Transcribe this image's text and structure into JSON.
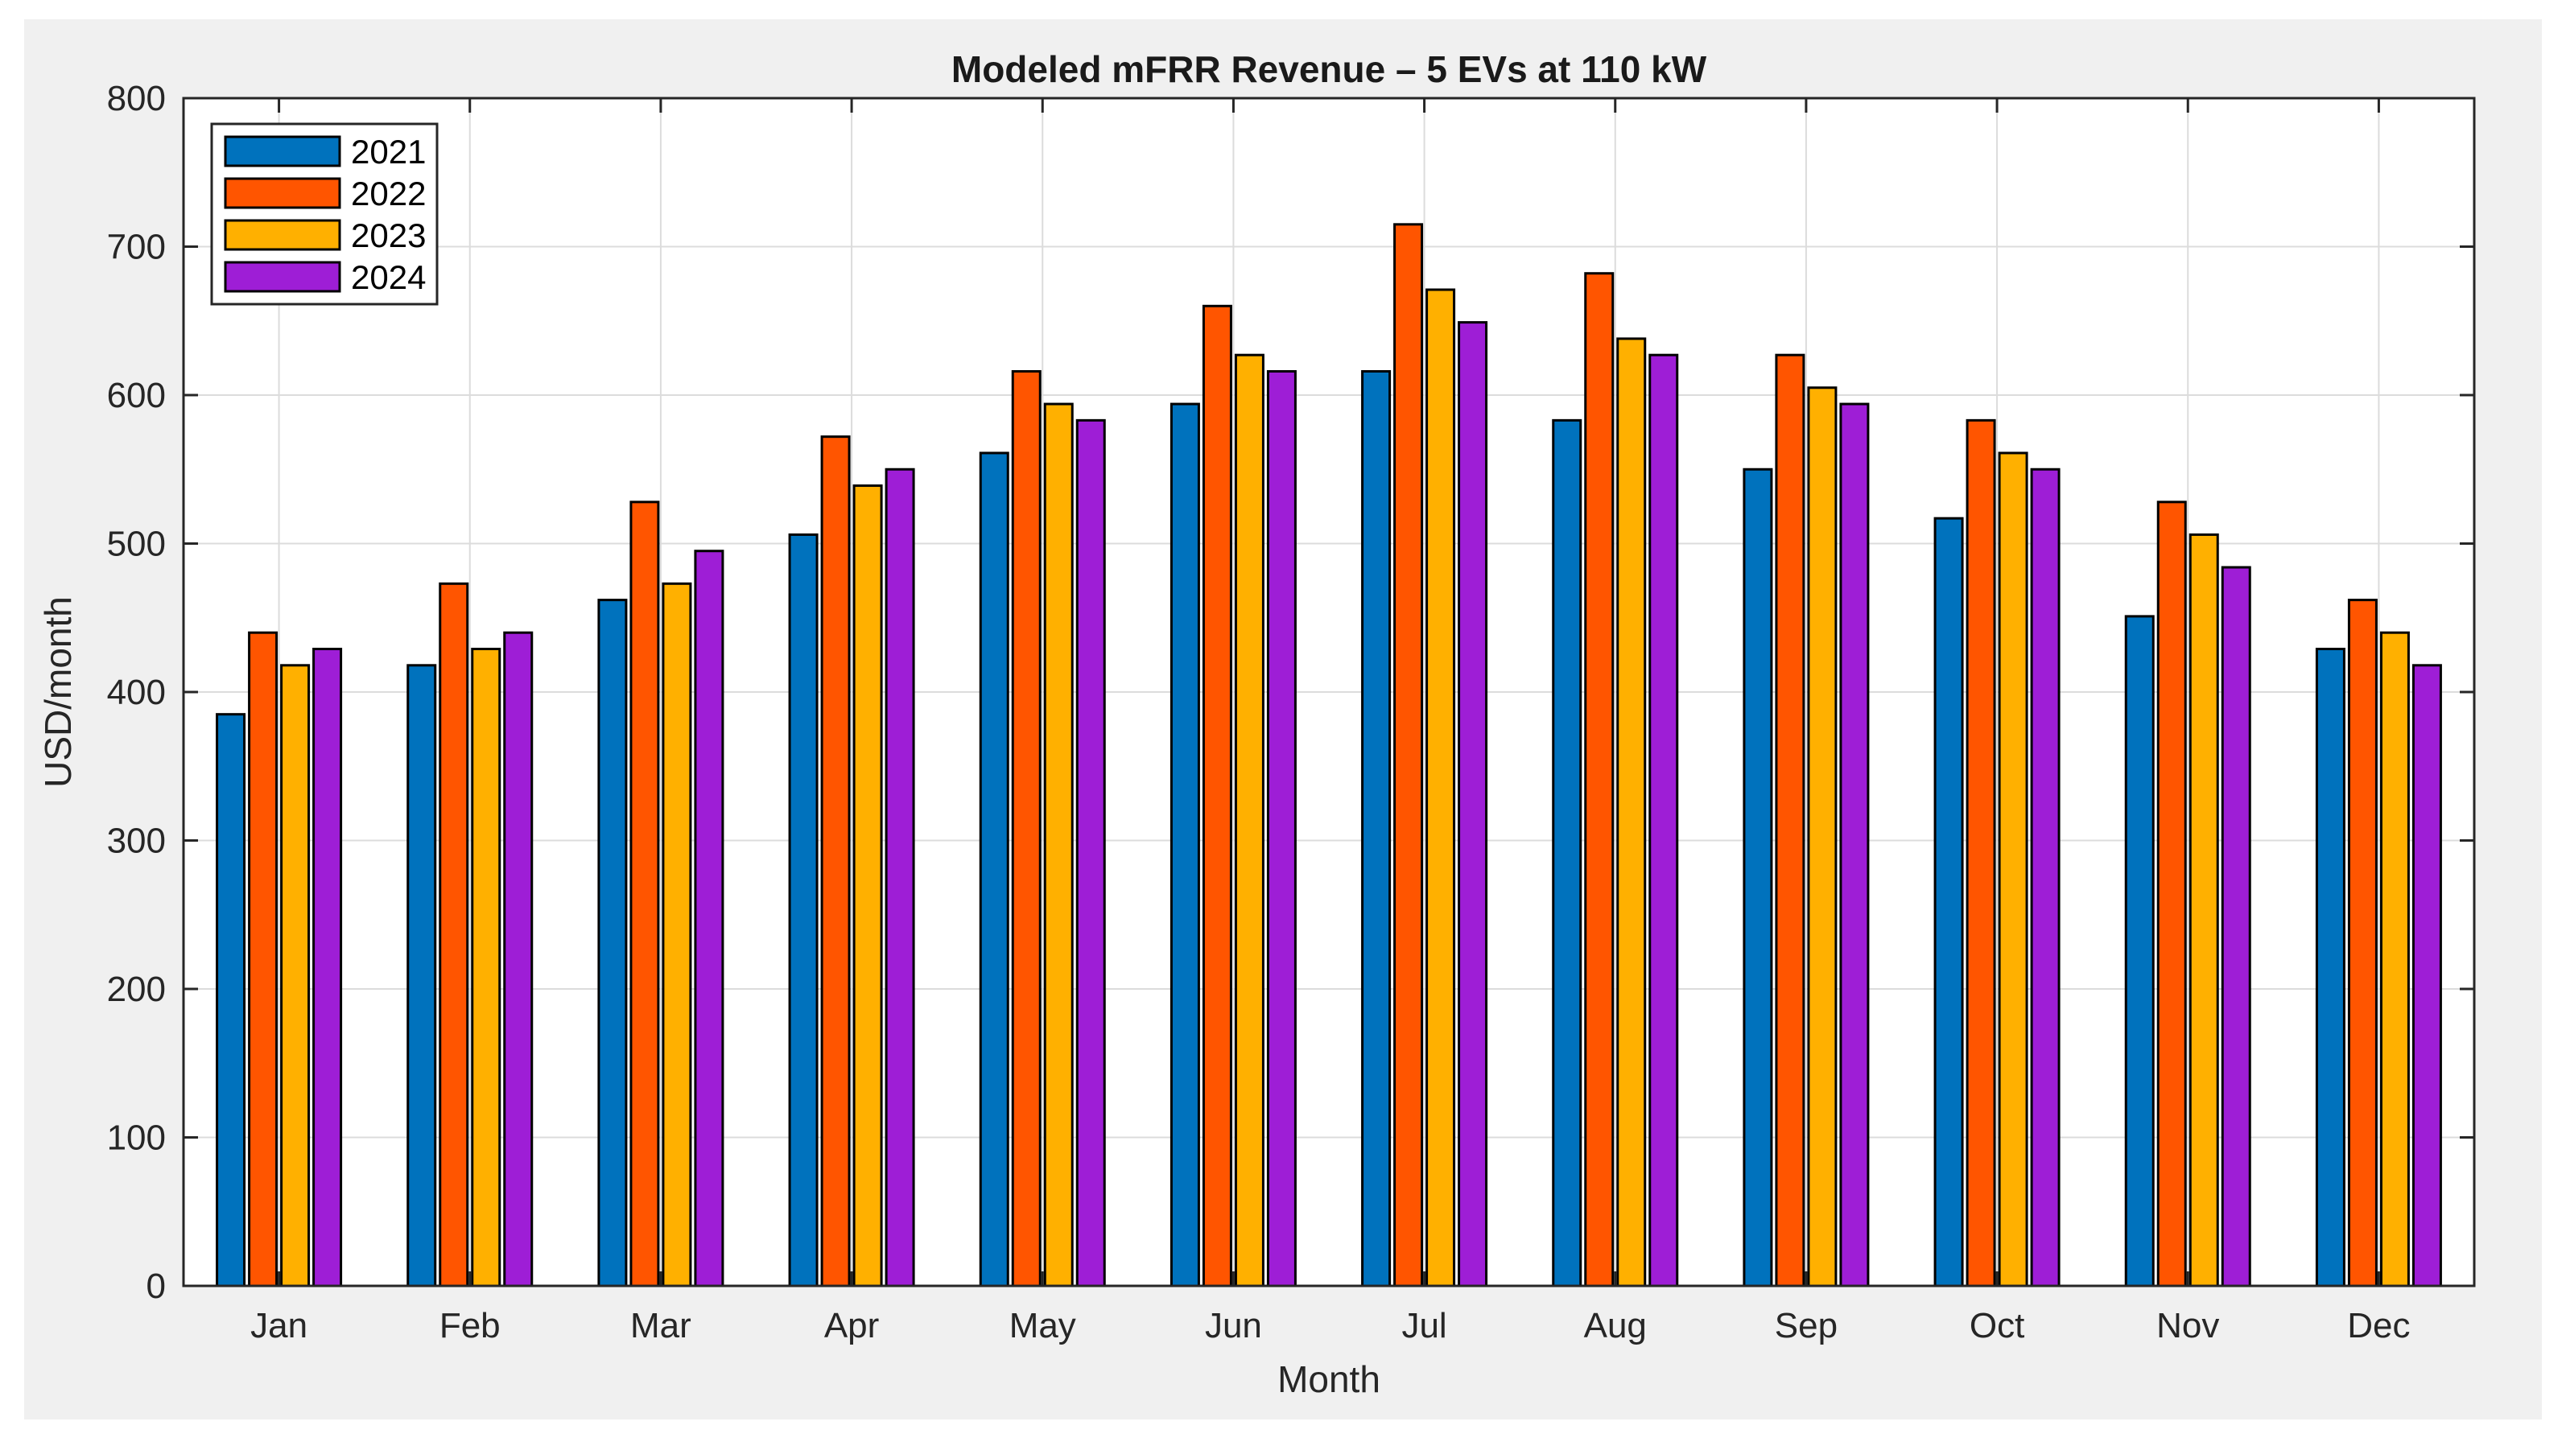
{
  "chart_data": {
    "type": "bar",
    "title": "Modeled mFRR Revenue – 5 EVs at 110 kW",
    "xlabel": "Month",
    "ylabel": "USD/month",
    "categories": [
      "Jan",
      "Feb",
      "Mar",
      "Apr",
      "May",
      "Jun",
      "Jul",
      "Aug",
      "Sep",
      "Oct",
      "Nov",
      "Dec"
    ],
    "ylim": [
      0,
      800
    ],
    "yticks": [
      0,
      100,
      200,
      300,
      400,
      500,
      600,
      700,
      800
    ],
    "grid": true,
    "legend_location": "top-left",
    "series": [
      {
        "name": "2021",
        "color": "#0072BD",
        "values": [
          385,
          418,
          462,
          506,
          561,
          594,
          616,
          583,
          550,
          517,
          451,
          429
        ]
      },
      {
        "name": "2022",
        "color": "#FF5500",
        "values": [
          440,
          473,
          528,
          572,
          616,
          660,
          715,
          682,
          627,
          583,
          528,
          462
        ]
      },
      {
        "name": "2023",
        "color": "#FFB000",
        "values": [
          418,
          429,
          473,
          539,
          594,
          627,
          671,
          638,
          605,
          561,
          506,
          440
        ]
      },
      {
        "name": "2024",
        "color": "#9E1ED6",
        "values": [
          429,
          440,
          495,
          550,
          583,
          616,
          649,
          627,
          594,
          550,
          484,
          418
        ]
      }
    ]
  }
}
